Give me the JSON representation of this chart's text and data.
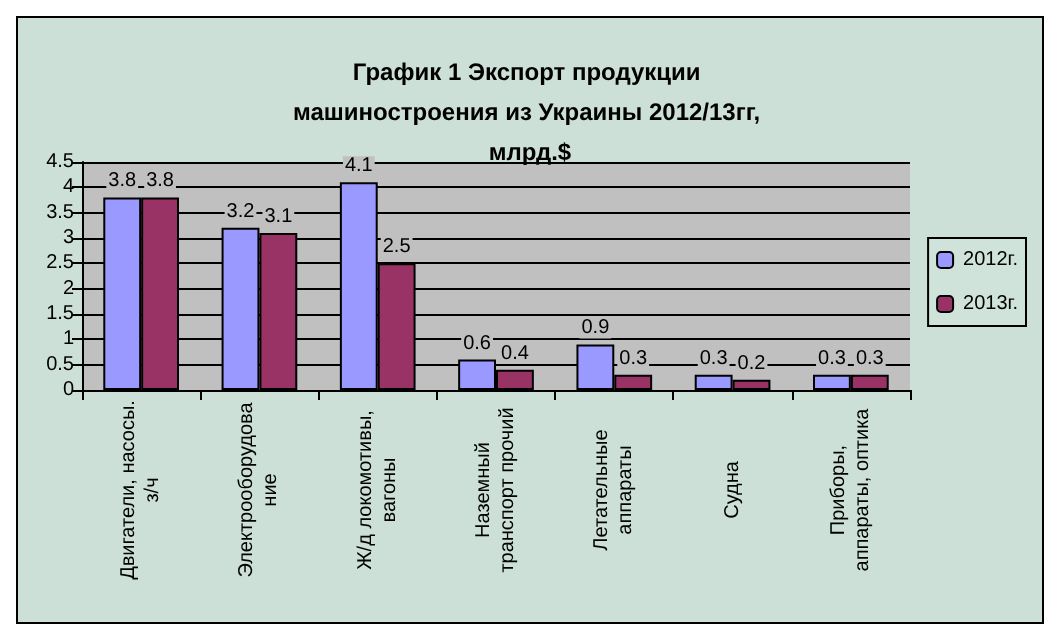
{
  "chart_data": {
    "type": "bar",
    "title": "График 1 Экспорт продукции машиностроения из Украины 2012/13гг, млрд.$",
    "categories": [
      "Двигатели, насосы.\nз/ч",
      "Электрооборудова\nние",
      "Ж/д локомотивы,\nвагоны",
      "Наземный\nтранспорт прочий",
      "Летательные\nаппараты",
      "Судна",
      "Приборы,\nаппараты, оптика"
    ],
    "series": [
      {
        "name": "2012г.",
        "color": "#9999ff",
        "values": [
          3.8,
          3.2,
          4.1,
          0.6,
          0.9,
          0.3,
          0.3
        ]
      },
      {
        "name": "2013г.",
        "color": "#993366",
        "values": [
          3.8,
          3.1,
          2.5,
          0.4,
          0.3,
          0.2,
          0.3
        ]
      }
    ],
    "ylim": [
      0,
      4.5
    ],
    "yticks": [
      0,
      0.5,
      1,
      1.5,
      2,
      2.5,
      3,
      3.5,
      4,
      4.5
    ],
    "grid": "y",
    "legend": "right",
    "data_labels": true
  }
}
